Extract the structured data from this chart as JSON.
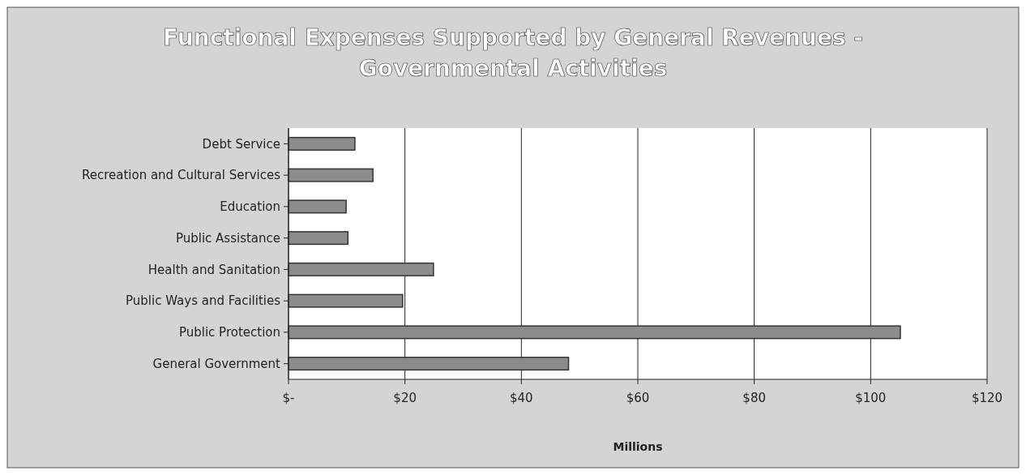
{
  "chart_data": {
    "type": "bar",
    "orientation": "horizontal",
    "title": "Functional Expenses Supported by General Revenues - Governmental Activities",
    "xlabel": "Millions",
    "categories": [
      "Debt Service",
      "Recreation and Cultural Services",
      "Education",
      "Public Assistance",
      "Health and Sanitation",
      "Public Ways and Facilities",
      "Public Protection",
      "General Government"
    ],
    "values": [
      11.4,
      14.5,
      9.9,
      10.2,
      24.9,
      19.6,
      105.1,
      48.1
    ],
    "color": "#8c8c8c",
    "xlim": [
      0,
      120
    ],
    "xticks": [
      {
        "value": 0,
        "label": "$-"
      },
      {
        "value": 20,
        "label": "$20"
      },
      {
        "value": 40,
        "label": "$40"
      },
      {
        "value": 60,
        "label": "$60"
      },
      {
        "value": 80,
        "label": "$80"
      },
      {
        "value": 100,
        "label": "$100"
      },
      {
        "value": 120,
        "label": "$120"
      }
    ],
    "grid": "x"
  }
}
